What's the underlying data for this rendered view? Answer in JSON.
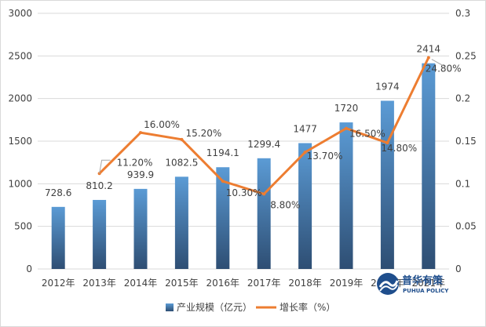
{
  "chart_data": {
    "type": "bar",
    "categories": [
      "2012年",
      "2013年",
      "2014年",
      "2015年",
      "2016年",
      "2017年",
      "2018年",
      "2019年",
      "2020年",
      "2021年"
    ],
    "series": [
      {
        "name": "产业规模（亿元）",
        "type": "bar",
        "axis": "left",
        "values": [
          728.6,
          810.2,
          939.9,
          1082.5,
          1194.1,
          1299.4,
          1477,
          1720,
          1974,
          2414
        ],
        "labels": [
          "728.6",
          "810.2",
          "939.9",
          "1082.5",
          "1194.1",
          "1299.4",
          "1477",
          "1720",
          "1974",
          "2414"
        ]
      },
      {
        "name": "增长率（%）",
        "type": "line",
        "axis": "right",
        "values": [
          null,
          0.112,
          0.16,
          0.152,
          0.103,
          0.088,
          0.137,
          0.165,
          0.148,
          0.248
        ],
        "labels": [
          "",
          "11.20%",
          "16.00%",
          "15.20%",
          "10.30%",
          "8.80%",
          "13.70%",
          "16.50%",
          "14.80%",
          "24.80%"
        ]
      }
    ],
    "y_left": {
      "min": 0,
      "max": 3000,
      "ticks": [
        "0",
        "500",
        "1000",
        "1500",
        "2000",
        "2500",
        "3000"
      ]
    },
    "y_right": {
      "min": 0,
      "max": 0.3,
      "ticks": [
        "0",
        "0.05",
        "0.1",
        "0.15",
        "0.2",
        "0.25",
        "0.3"
      ]
    },
    "grid": true,
    "legend_position": "bottom",
    "colors": {
      "bar_top": "#5b9bd5",
      "bar_bottom": "#2e4e73",
      "line": "#ed7d31",
      "grid": "#d9d9d9",
      "text": "#404040"
    }
  },
  "watermark": {
    "name": "普华有策",
    "subtitle": "PUHUA POLICY"
  }
}
